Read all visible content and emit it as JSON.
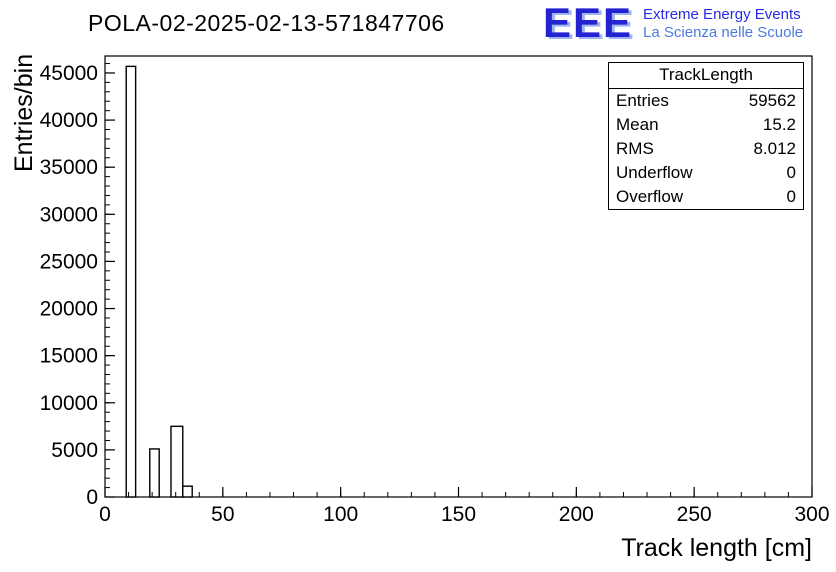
{
  "header": {
    "title": "POLA-02-2025-02-13-571847706",
    "logo": {
      "acronym": "EEE",
      "line1": "Extreme Energy Events",
      "line2": "La Scienza nelle Scuole",
      "acronym_color": "#2323d2",
      "line1_color": "#2a2ae0",
      "line2_color": "#4d7ae0"
    }
  },
  "stats_box": {
    "title": "TrackLength",
    "rows": [
      {
        "label": "Entries",
        "value": "59562"
      },
      {
        "label": "Mean",
        "value": "15.2"
      },
      {
        "label": "RMS",
        "value": "8.012"
      },
      {
        "label": "Underflow",
        "value": "0"
      },
      {
        "label": "Overflow",
        "value": "0"
      }
    ]
  },
  "chart_data": {
    "type": "bar",
    "title": "POLA-02-2025-02-13-571847706",
    "xlabel": "Track length [cm]",
    "ylabel": "Entries/bin",
    "xlim": [
      0,
      300
    ],
    "ylim": [
      0,
      46800
    ],
    "xticks": [
      0,
      50,
      100,
      150,
      200,
      250,
      300
    ],
    "yticks": [
      0,
      5000,
      10000,
      15000,
      20000,
      25000,
      30000,
      35000,
      40000,
      45000
    ],
    "x_minor_step": 10,
    "y_minor_step": 1000,
    "grid": false,
    "legend": "none",
    "bar_fill": "#ffffff",
    "bar_stroke": "#000000",
    "bars": [
      {
        "x0": 9,
        "x1": 13,
        "y": 45700
      },
      {
        "x0": 19,
        "x1": 23,
        "y": 5100
      },
      {
        "x0": 28,
        "x1": 33,
        "y": 7500
      },
      {
        "x0": 33,
        "x1": 37,
        "y": 1150
      }
    ]
  }
}
